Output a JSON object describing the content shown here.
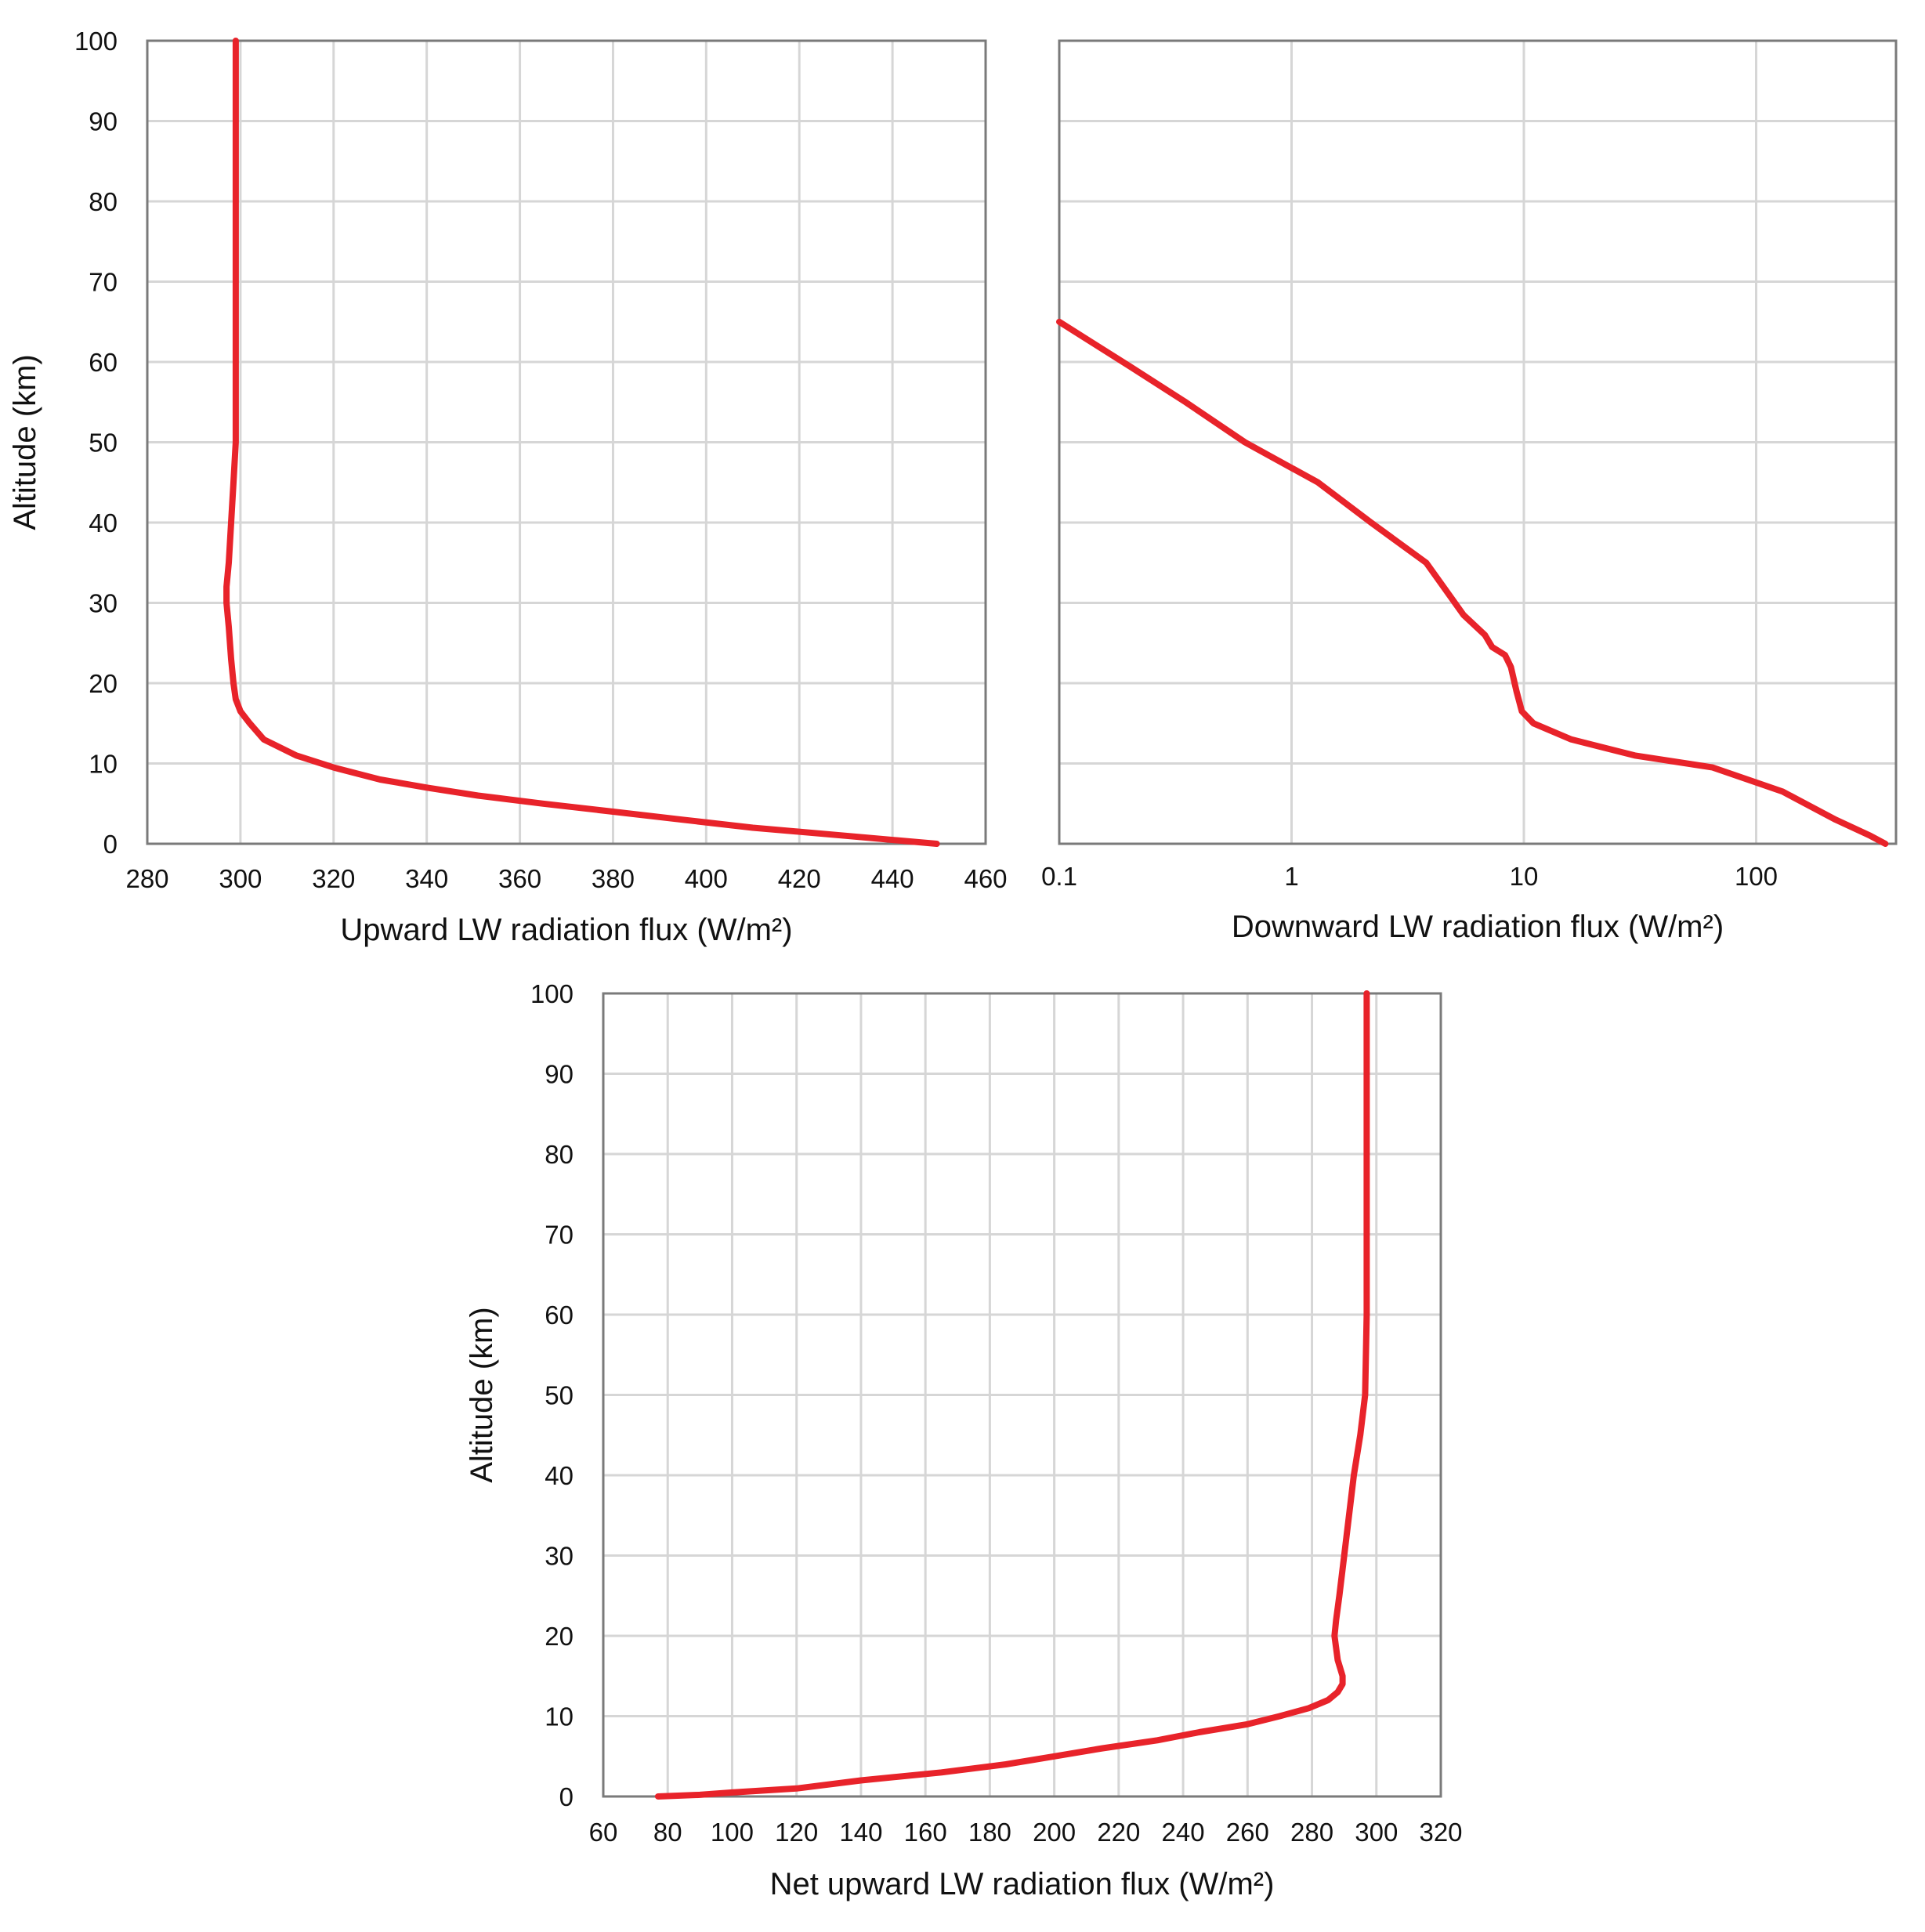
{
  "colors": {
    "series": "#e8232a",
    "grid": "#d6d6d6",
    "frame": "#7a7a7a"
  },
  "chart_data": [
    {
      "type": "line",
      "xlabel": "Upward LW radiation flux  (W/m²)",
      "ylabel": "Altitude (km)",
      "xscale": "linear",
      "xlim": [
        280,
        460
      ],
      "ylim": [
        0,
        100
      ],
      "xticks": [
        280,
        300,
        320,
        340,
        360,
        380,
        400,
        420,
        440,
        460
      ],
      "yticks": [
        0,
        10,
        20,
        30,
        40,
        50,
        60,
        70,
        80,
        90,
        100
      ],
      "grid": true,
      "series": [
        {
          "x": [
            449.5,
            430,
            410,
            395,
            380,
            365,
            351,
            340,
            330,
            320,
            312,
            305,
            302,
            300,
            299,
            298.5,
            298,
            297.5,
            297,
            297,
            297.5,
            298,
            298.5,
            299,
            299,
            299
          ],
          "y": [
            0,
            1,
            2,
            3,
            4,
            5,
            6,
            7,
            8,
            9.5,
            11,
            13,
            15,
            16.5,
            18,
            20,
            23,
            27,
            30,
            32,
            35,
            40,
            45,
            50,
            70,
            100
          ]
        }
      ]
    },
    {
      "type": "line",
      "xlabel": "Downward LW radiation flux  (W/m²)",
      "ylabel": "",
      "xscale": "log",
      "xlim": [
        0.1,
        400
      ],
      "ylim": [
        0,
        100
      ],
      "xticks": [
        0.1,
        1,
        10,
        100
      ],
      "xticklabels": [
        "0.1",
        "1",
        "10",
        "100"
      ],
      "yticks": [
        0,
        10,
        20,
        30,
        40,
        50,
        60,
        70,
        80,
        90,
        100
      ],
      "grid": true,
      "series": [
        {
          "x": [
            360,
            310,
            220,
            130,
            65,
            30,
            16,
            11,
            9.8,
            9.3,
            8.8,
            8.3,
            7.3,
            6.8,
            5.5,
            3.8,
            2.2,
            1.3,
            0.63,
            0.35,
            0.2,
            0.1
          ],
          "y": [
            0,
            1,
            3,
            6.5,
            9.5,
            11,
            13,
            15,
            16.5,
            19,
            22,
            23.5,
            24.5,
            26,
            28.5,
            35,
            40,
            45,
            50,
            55,
            59.5,
            65
          ]
        }
      ]
    },
    {
      "type": "line",
      "xlabel": "Net upward LW radiation flux  (W/m²)",
      "ylabel": "Altitude (km)",
      "xscale": "linear",
      "xlim": [
        60,
        320
      ],
      "ylim": [
        0,
        100
      ],
      "xticks": [
        60,
        80,
        100,
        120,
        140,
        160,
        180,
        200,
        220,
        240,
        260,
        280,
        300,
        320
      ],
      "yticks": [
        0,
        10,
        20,
        30,
        40,
        50,
        60,
        70,
        80,
        90,
        100
      ],
      "grid": true,
      "series": [
        {
          "x": [
            77,
            90,
            100,
            120,
            140,
            165,
            185,
            200,
            215,
            232,
            245,
            260,
            270,
            279,
            285,
            288,
            289.5,
            289.5,
            288,
            287,
            287.5,
            288.5,
            290,
            293,
            295,
            296.5,
            297,
            297,
            297
          ],
          "y": [
            0,
            0.2,
            0.5,
            1,
            2,
            3,
            4,
            5,
            6,
            7,
            8,
            9,
            10,
            11,
            12,
            13,
            14,
            15,
            17,
            20,
            22,
            25,
            30,
            40,
            45,
            50,
            60,
            80,
            100
          ]
        }
      ]
    }
  ]
}
